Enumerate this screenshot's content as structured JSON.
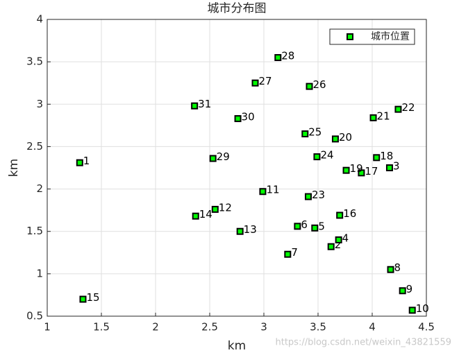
{
  "chart_data": {
    "type": "scatter",
    "title": "城市分布图",
    "xlabel": "km",
    "ylabel": "km",
    "series": [
      {
        "name": "城市位置",
        "color": "#00ff00",
        "edgecolor": "#000000",
        "x": [
          1.3,
          3.62,
          4.16,
          3.69,
          3.47,
          3.31,
          3.22,
          4.17,
          4.28,
          4.37,
          2.99,
          2.55,
          2.78,
          2.37,
          1.33,
          3.7,
          3.9,
          4.04,
          3.76,
          3.66,
          4.01,
          4.24,
          3.41,
          3.49,
          3.38,
          3.42,
          2.92,
          3.13,
          2.53,
          2.76,
          2.36
        ],
        "values": [
          2.31,
          1.32,
          2.25,
          1.4,
          1.54,
          1.56,
          1.23,
          1.05,
          0.8,
          0.57,
          1.97,
          1.76,
          1.5,
          1.68,
          0.7,
          1.69,
          2.19,
          2.37,
          2.22,
          2.59,
          2.84,
          2.94,
          1.91,
          2.38,
          2.65,
          3.21,
          3.25,
          3.55,
          2.36,
          2.83,
          2.98
        ],
        "point_labels": [
          "1",
          "2",
          "3",
          "4",
          "5",
          "6",
          "7",
          "8",
          "9",
          "10",
          "11",
          "12",
          "13",
          "14",
          "15",
          "16",
          "17",
          "18",
          "19",
          "20",
          "21",
          "22",
          "23",
          "24",
          "25",
          "26",
          "27",
          "28",
          "29",
          "30",
          "31"
        ]
      }
    ],
    "xlim": [
      1,
      4.5
    ],
    "xticks": [
      1,
      1.5,
      2,
      2.5,
      3,
      3.5,
      4,
      4.5
    ],
    "ylim": [
      0.5,
      4
    ],
    "yticks": [
      0.5,
      1,
      1.5,
      2,
      2.5,
      3,
      3.5,
      4
    ],
    "grid": true,
    "legend": "upper right",
    "watermark": "https://blog.csdn.net/weixin_43821559"
  }
}
